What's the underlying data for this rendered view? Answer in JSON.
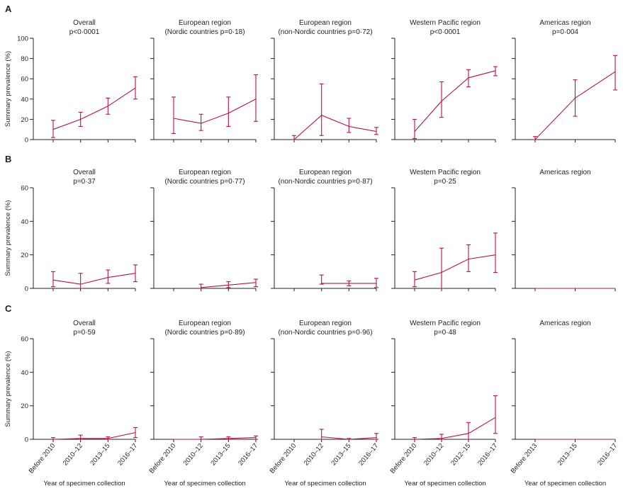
{
  "colors": {
    "series": "#b5134b",
    "axis": "#231f20",
    "background": "#ffffff"
  },
  "chart_data": [
    {
      "row": "A",
      "ylabel": "Summary prevalence (%)",
      "ylim": [
        0,
        100
      ],
      "yticks": [
        "0",
        "20",
        "40",
        "60",
        "80",
        "100"
      ],
      "panels": [
        {
          "title": "Overall",
          "subtitle": "p<0·0001",
          "type": "line",
          "categories": [
            "Before 2010",
            "2010–12",
            "2013–15",
            "2016–17"
          ],
          "values": [
            10,
            20,
            33,
            51
          ],
          "lower": [
            2,
            13,
            25,
            40
          ],
          "upper": [
            19,
            27,
            41,
            62
          ]
        },
        {
          "title": "European region",
          "subtitle": "(Nordic countries p=0·18)",
          "type": "line",
          "categories": [
            "Before 2010",
            "2010–12",
            "2013–15",
            "2016–17"
          ],
          "values": [
            21,
            16,
            26,
            40
          ],
          "lower": [
            6,
            9,
            13,
            18
          ],
          "upper": [
            42,
            25,
            42,
            64
          ]
        },
        {
          "title": "European region",
          "subtitle": "(non-Nordic countries p=0·72)",
          "type": "line",
          "categories": [
            "Before 2010",
            "2010–12",
            "2013–15",
            "2016–17"
          ],
          "values": [
            0,
            24,
            13,
            8
          ],
          "lower": [
            0,
            4,
            7,
            5
          ],
          "upper": [
            4,
            55,
            21,
            12
          ]
        },
        {
          "title": "Western Pacific region",
          "subtitle": "p<0·0001",
          "type": "line",
          "categories": [
            "Before 2010",
            "2010–12",
            "2012–15",
            "2016–17"
          ],
          "values": [
            8,
            38,
            61,
            68
          ],
          "lower": [
            1,
            22,
            52,
            63
          ],
          "upper": [
            20,
            57,
            69,
            72
          ]
        },
        {
          "title": "Americas region",
          "subtitle": "p=0·004",
          "type": "line",
          "categories": [
            "Before 2013",
            "2013–15",
            "2016–17"
          ],
          "values": [
            0,
            41,
            67
          ],
          "lower": [
            0,
            23,
            49
          ],
          "upper": [
            3,
            59,
            83
          ]
        }
      ]
    },
    {
      "row": "B",
      "ylabel": "Summary prevalence (%)",
      "ylim": [
        0,
        60
      ],
      "yticks": [
        "0",
        "20",
        "40",
        "60"
      ],
      "panels": [
        {
          "title": "Overall",
          "subtitle": "p=0·37",
          "type": "line",
          "categories": [
            "Before 2010",
            "2010–12",
            "2013–15",
            "2016–17"
          ],
          "values": [
            5,
            2.5,
            6.5,
            9
          ],
          "lower": [
            1,
            0,
            3,
            4
          ],
          "upper": [
            10,
            9,
            11,
            14
          ]
        },
        {
          "title": "European region",
          "subtitle": "(Nordic countries p=0·77)",
          "type": "line",
          "categories": [
            "Before 2010",
            "2010–12",
            "2013–15",
            "2016–17"
          ],
          "values": [
            null,
            0.5,
            2,
            3.5
          ],
          "lower": [
            null,
            0,
            0.5,
            1
          ],
          "upper": [
            null,
            2.5,
            4,
            5.5
          ]
        },
        {
          "title": "European region",
          "subtitle": "(non-Nordic countries p=0·87)",
          "type": "line",
          "categories": [
            "Before 2010",
            "2010–12",
            "2013–15",
            "2016–17"
          ],
          "values": [
            null,
            3,
            3,
            3
          ],
          "lower": [
            null,
            2.5,
            1.5,
            0.5
          ],
          "upper": [
            null,
            8,
            4.5,
            6
          ]
        },
        {
          "title": "Western Pacific region",
          "subtitle": "p=0·25",
          "type": "line",
          "categories": [
            "Before 2010",
            "2010–12",
            "2013–15",
            "2016–17"
          ],
          "values": [
            5,
            9.5,
            17.5,
            20
          ],
          "lower": [
            1,
            0,
            10,
            9.5
          ],
          "upper": [
            10,
            24,
            26,
            33
          ]
        },
        {
          "title": "Americas region",
          "subtitle": "",
          "type": "line",
          "categories": [
            "Before 2013",
            "2013–15",
            "2016–17"
          ],
          "values": [
            0,
            0,
            0
          ],
          "lower": [
            0,
            0,
            0
          ],
          "upper": [
            0,
            0,
            0
          ]
        }
      ]
    },
    {
      "row": "C",
      "ylabel": "Summary prevalence (%)",
      "xlabel": "Year of specimen collection",
      "ylim": [
        0,
        60
      ],
      "yticks": [
        "0",
        "20",
        "40",
        "60"
      ],
      "panels": [
        {
          "title": "Overall",
          "subtitle": "p=0·59",
          "type": "line",
          "categories": [
            "Before 2010",
            "2010–12",
            "2013–15",
            "2016–17"
          ],
          "values": [
            0,
            0.5,
            0.5,
            4
          ],
          "lower": [
            0,
            0,
            0,
            1
          ],
          "upper": [
            1,
            2.5,
            1.5,
            7
          ]
        },
        {
          "title": "European region",
          "subtitle": "(Nordic countries p=0·89)",
          "type": "line",
          "categories": [
            "Before 2010",
            "2010–12",
            "2013–15",
            "2016–17"
          ],
          "values": [
            0,
            0,
            0.5,
            1
          ],
          "lower": [
            0,
            0,
            0,
            0
          ],
          "upper": [
            0,
            1.5,
            1.5,
            2
          ]
        },
        {
          "title": "European region",
          "subtitle": "(non-Nordic countries p=0·96)",
          "type": "line",
          "categories": [
            "Before 2010",
            "2010–12",
            "2013–15",
            "2016–17"
          ],
          "values": [
            null,
            1.5,
            0,
            1
          ],
          "lower": [
            null,
            0,
            0,
            0
          ],
          "upper": [
            null,
            6,
            0.5,
            3.5
          ]
        },
        {
          "title": "Western Pacific region",
          "subtitle": "p=0·48",
          "type": "line",
          "categories": [
            "Before 2010",
            "2010–12",
            "2012–15",
            "2016–17"
          ],
          "values": [
            0,
            0.5,
            3.5,
            13
          ],
          "lower": [
            0,
            0,
            0,
            3.5
          ],
          "upper": [
            1,
            3,
            10,
            26
          ]
        },
        {
          "title": "Americas region",
          "subtitle": "",
          "type": "line",
          "categories": [
            "Before 2013",
            "2013–15",
            "2016–17"
          ],
          "values": [
            0,
            0,
            0
          ],
          "lower": [
            0,
            0,
            0
          ],
          "upper": [
            0,
            0,
            0
          ]
        }
      ]
    }
  ]
}
